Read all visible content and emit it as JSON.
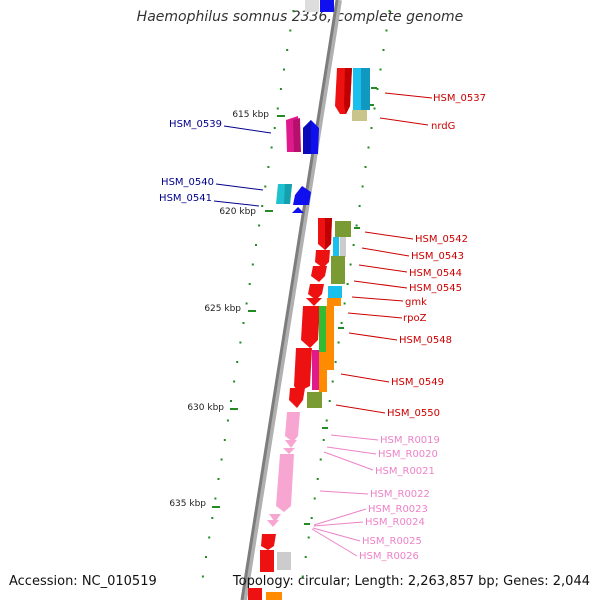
{
  "title": "Haemophilus somnus 2336, complete genome",
  "footer": {
    "accession": "Accession: NC_010519",
    "summary": "Topology: circular; Length: 2,263,857 bp; Genes: 2,044"
  },
  "colors": {
    "backbone": "#888888",
    "tick": "#228b22",
    "label_forward": "#cc0000",
    "label_reverse": "#00008b",
    "label_rna": "#ee82c8"
  },
  "kbp_ticks": [
    {
      "label": "615 kbp"
    },
    {
      "label": "620 kbp"
    },
    {
      "label": "625 kbp"
    },
    {
      "label": "630 kbp"
    },
    {
      "label": "635 kbp"
    }
  ],
  "gene_labels": {
    "forward": [
      "HSM_0537",
      "nrdG",
      "HSM_0542",
      "HSM_0543",
      "HSM_0544",
      "HSM_0545",
      "gmk",
      "rpoZ",
      "HSM_0548",
      "HSM_0549",
      "HSM_0550"
    ],
    "reverse": [
      "HSM_0539",
      "HSM_0540",
      "HSM_0541"
    ],
    "rna": [
      "HSM_R0019",
      "HSM_R0020",
      "HSM_R0021",
      "HSM_R0022",
      "HSM_R0023",
      "HSM_R0024",
      "HSM_R0025",
      "HSM_R0026"
    ]
  }
}
